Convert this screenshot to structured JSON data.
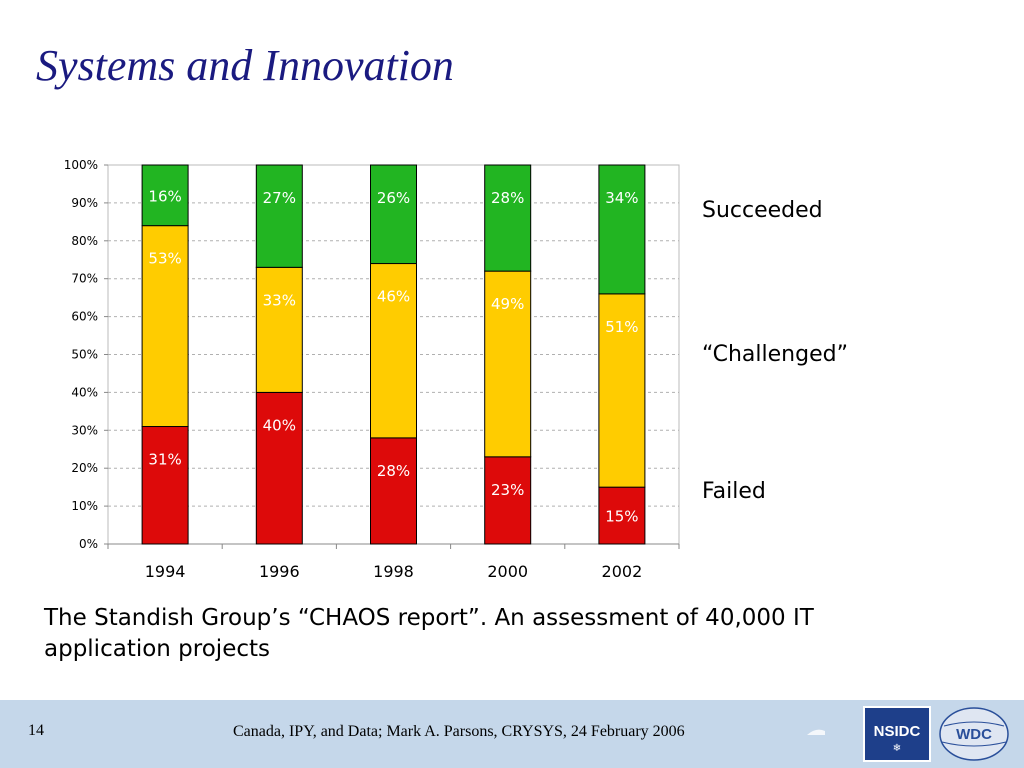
{
  "slide": {
    "title": "Systems and Innovation",
    "caption": "The Standish Group’s “CHAOS report”. An assessment of 40,000 IT application projects",
    "footer": {
      "page_number": "14",
      "credit": "Canada, IPY, and Data; Mark A. Parsons, CRYSYS, 24 February 2006",
      "logo_nsidc_text": "NSIDC",
      "logo_wdc_text": "WDC"
    }
  },
  "chart_data": {
    "type": "bar",
    "stacked": true,
    "categories": [
      "1994",
      "1996",
      "1998",
      "2000",
      "2002"
    ],
    "series": [
      {
        "name": "Failed",
        "color": "#dd0a0a",
        "values": [
          31,
          40,
          28,
          23,
          15
        ],
        "labels": [
          "31%",
          "40%",
          "28%",
          "23%",
          "15%"
        ]
      },
      {
        "name": "“Challenged”",
        "color": "#ffcc00",
        "values": [
          53,
          33,
          46,
          49,
          51
        ],
        "labels": [
          "53%",
          "33%",
          "46%",
          "49%",
          "51%"
        ]
      },
      {
        "name": "Succeeded",
        "color": "#22b522",
        "values": [
          16,
          27,
          26,
          28,
          34
        ],
        "labels": [
          "16%",
          "27%",
          "26%",
          "28%",
          "34%"
        ]
      }
    ],
    "ylim": [
      0,
      100
    ],
    "yticks": [
      "0%",
      "10%",
      "20%",
      "30%",
      "40%",
      "50%",
      "60%",
      "70%",
      "80%",
      "90%",
      "100%"
    ],
    "grid": true,
    "legend_position": "right"
  }
}
